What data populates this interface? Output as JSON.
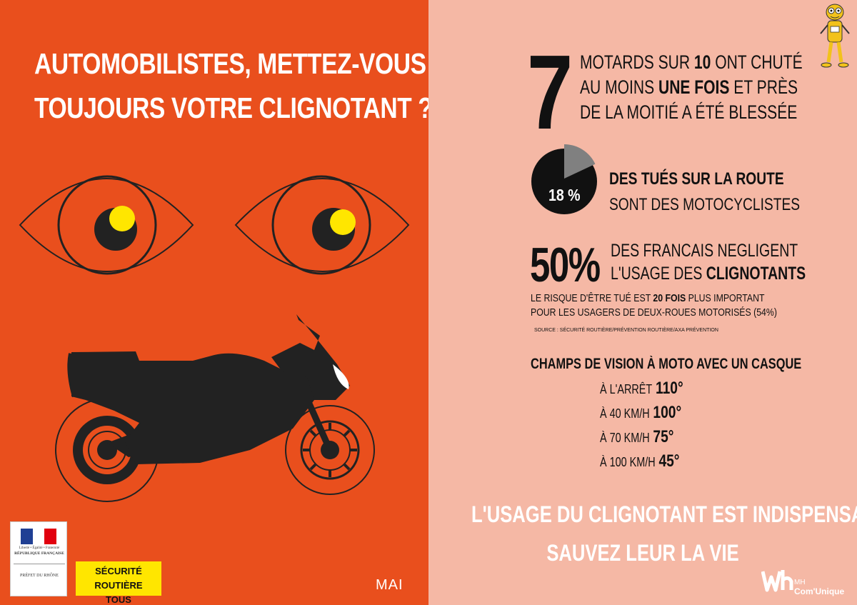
{
  "left": {
    "headline_line1": "AUTOMOBILISTES, METTEZ-VOUS",
    "headline_line2": "TOUJOURS VOTRE CLIGNOTANT ?",
    "month": "MAI",
    "gov_logo": {
      "motto": "Liberté • Égalité • Fraternité",
      "republic": "RÉPUBLIQUE FRANÇAISE",
      "prefet": "PRÉFET DU RHÔNE"
    },
    "badge": {
      "line1": "SÉCURITÉ ROUTIÈRE",
      "line2": "TOUS RESPONSABLES"
    }
  },
  "stats": {
    "big_number": "7",
    "motards_a": "MOTARDS SUR ",
    "motards_b": "10",
    "motards_c": " ONT CHUTÉ",
    "moins_a": "AU MOINS ",
    "moins_b": "UNE FOIS",
    "moins_c": " ET PRÈS",
    "moitie": "DE LA MOITIÉ A ÉTÉ BLESSÉE",
    "pie_label": "18 %",
    "pie_percent": 18,
    "tues_line1": "DES TUÉS SUR LA ROUTE",
    "tues_line2": "SONT DES MOTOCYCLISTES",
    "big50": "50%",
    "francais_line1": "DES FRANCAIS NEGLIGENT",
    "usage_a": "L'USAGE DES ",
    "usage_b": "CLIGNOTANTS",
    "risk_a": "LE RISQUE D'ÊTRE TUÉ EST ",
    "risk_b": "20 FOIS",
    "risk_c": " PLUS IMPORTANT",
    "risk_line2": "POUR LES USAGERS DE DEUX-ROUES MOTORISÉS (54%)",
    "source": "SOURCE : SÉCURITÉ ROUTIÈRE/PRÉVENTION ROUTIÈRE/AXA PRÉVENTION"
  },
  "vision": {
    "title": "CHAMPS DE VISION À MOTO AVEC UN CASQUE",
    "rows": [
      {
        "label": "À L'ARRÊT",
        "value": "110°"
      },
      {
        "label": "À 40 KM/H",
        "value": "100°"
      },
      {
        "label": "À 70 KM/H",
        "value": "75°"
      },
      {
        "label": "À 100 KM/H",
        "value": "45°"
      }
    ]
  },
  "cta": {
    "line1": "L'USAGE DU CLIGNOTANT EST INDISPENSABLE",
    "line2": "SAUVEZ LEUR LA VIE"
  },
  "brand": {
    "mh": "MH",
    "comunique": "Com'Unique"
  },
  "colors": {
    "left_bg": "#e94f1d",
    "right_bg": "#f5b8a5",
    "iris": "#ffe600",
    "dark": "#222222",
    "pie_slice": "#808080"
  },
  "icons": [
    "eye-icon",
    "motorcycle-icon",
    "pie-chart-icon",
    "mascot-icon",
    "mh-logo-icon",
    "french-flag-icon"
  ]
}
